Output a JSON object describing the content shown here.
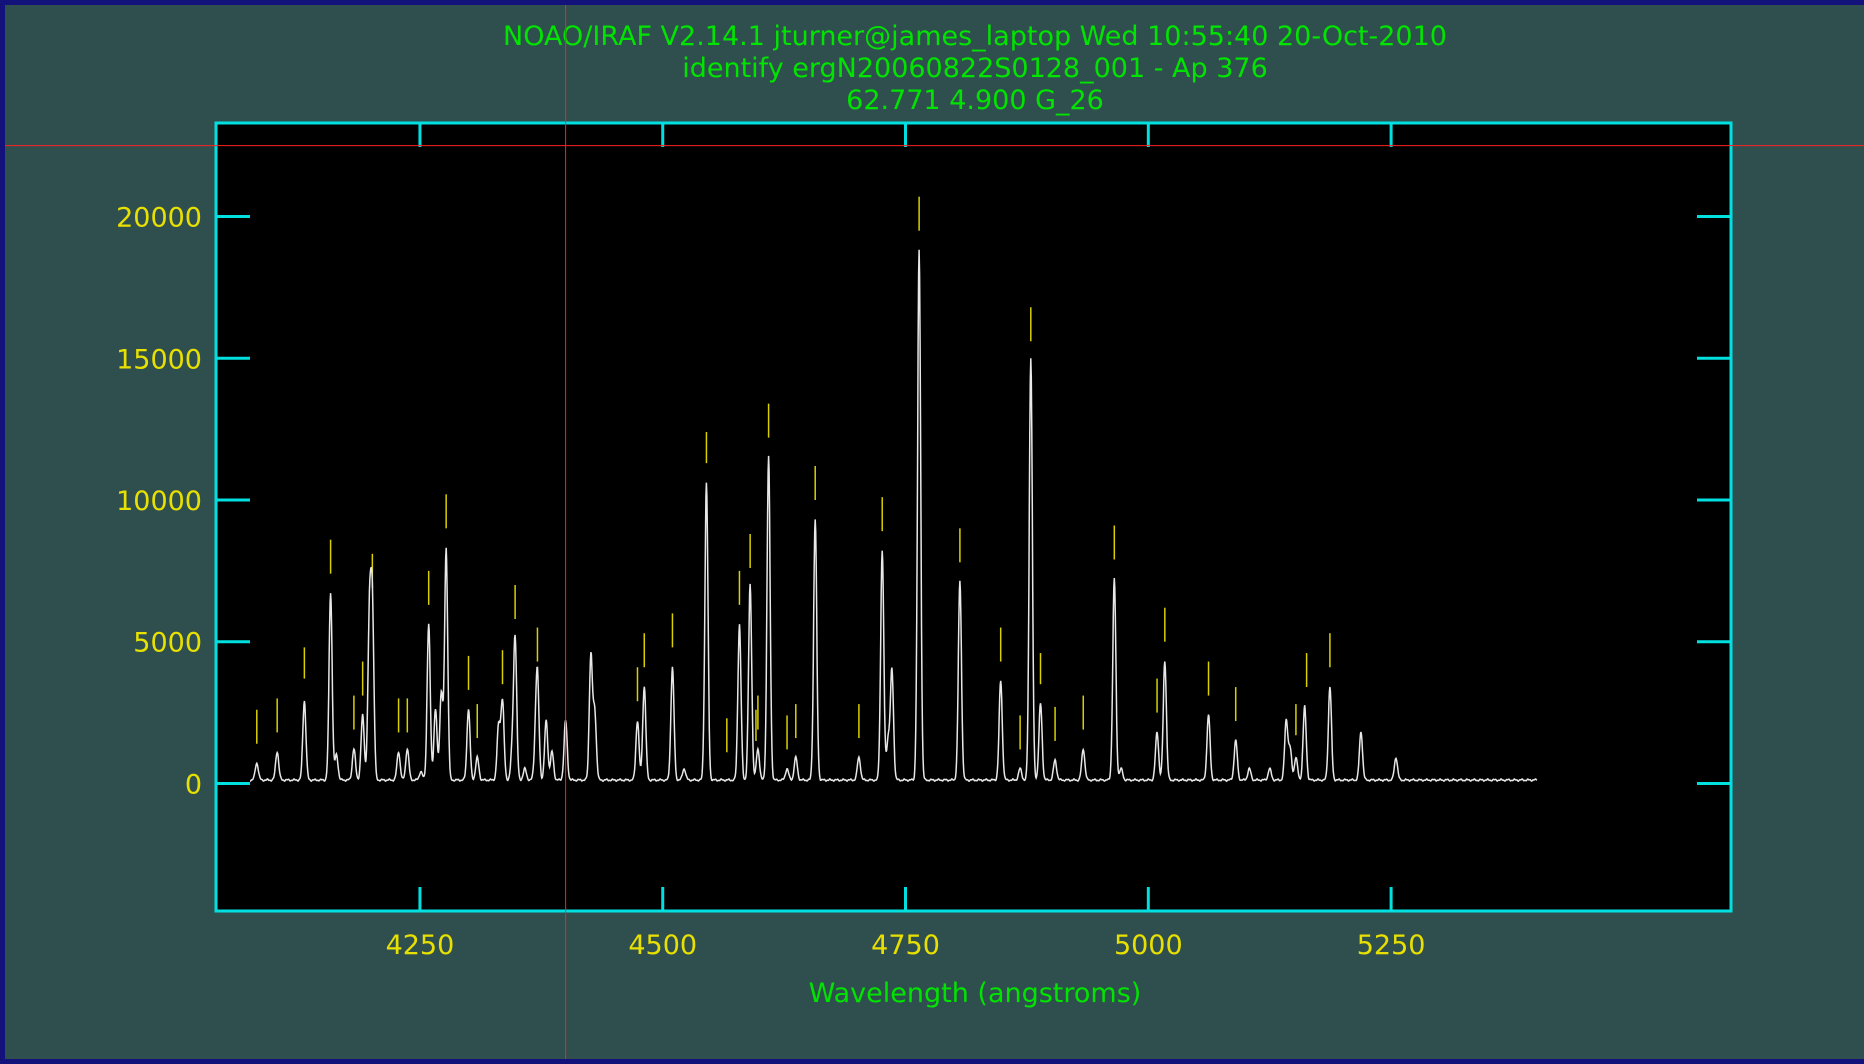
{
  "header": {
    "line1": "NOAO/IRAF V2.14.1 jturner@james_laptop Wed 10:55:40 20-Oct-2010",
    "line2": "identify ergN20060822S0128_001 - Ap 376",
    "line3": "62.771   4.900 G_26"
  },
  "colors": {
    "background": "#2f4f4f",
    "frame": "#00e0e0",
    "spectrum": "#e8e8e8",
    "line_marks": "#d8d000",
    "cursor": "#ff2020",
    "title_text": "#00e400",
    "tick_text": "#e8e000"
  },
  "chart_data": {
    "type": "line",
    "title": "",
    "xlabel": "Wavelength (angstroms)",
    "ylabel": "",
    "xlim": [
      4040,
      5600
    ],
    "ylim": [
      -4500,
      23300
    ],
    "x_ticks": [
      4250,
      4500,
      4750,
      5000,
      5250
    ],
    "y_ticks": [
      0,
      5000,
      10000,
      15000,
      20000
    ],
    "x_range": [
      4075,
      5400
    ],
    "continuum": 120,
    "cursor": {
      "x": 4400,
      "y": 22500
    },
    "emission_lines": [
      {
        "x": 4082,
        "y": 600
      },
      {
        "x": 4103,
        "y": 1000
      },
      {
        "x": 4131,
        "y": 2800
      },
      {
        "x": 4158,
        "y": 6600
      },
      {
        "x": 4164,
        "y": 900
      },
      {
        "x": 4182,
        "y": 1100
      },
      {
        "x": 4191,
        "y": 2300
      },
      {
        "x": 4198,
        "y": 5600
      },
      {
        "x": 4201,
        "y": 6000
      },
      {
        "x": 4228,
        "y": 1000
      },
      {
        "x": 4237,
        "y": 1100
      },
      {
        "x": 4251,
        "y": 300
      },
      {
        "x": 4259,
        "y": 5500
      },
      {
        "x": 4266,
        "y": 2500
      },
      {
        "x": 4272,
        "y": 3100
      },
      {
        "x": 4277,
        "y": 8200
      },
      {
        "x": 4300,
        "y": 2500
      },
      {
        "x": 4309,
        "y": 800
      },
      {
        "x": 4331,
        "y": 1900
      },
      {
        "x": 4335,
        "y": 2800
      },
      {
        "x": 4345,
        "y": 900
      },
      {
        "x": 4348,
        "y": 5000
      },
      {
        "x": 4358,
        "y": 400
      },
      {
        "x": 4369,
        "y": 1000
      },
      {
        "x": 4371,
        "y": 3500
      },
      {
        "x": 4380,
        "y": 2100
      },
      {
        "x": 4386,
        "y": 1000
      },
      {
        "x": 4400,
        "y": 2100
      },
      {
        "x": 4426,
        "y": 4400
      },
      {
        "x": 4430,
        "y": 2400
      },
      {
        "x": 4474,
        "y": 2100
      },
      {
        "x": 4481,
        "y": 3300
      },
      {
        "x": 4510,
        "y": 4000
      },
      {
        "x": 4522,
        "y": 400
      },
      {
        "x": 4545,
        "y": 10500
      },
      {
        "x": 4579,
        "y": 5500
      },
      {
        "x": 4590,
        "y": 6900
      },
      {
        "x": 4598,
        "y": 1100
      },
      {
        "x": 4609,
        "y": 11400
      },
      {
        "x": 4628,
        "y": 400
      },
      {
        "x": 4637,
        "y": 800
      },
      {
        "x": 4657,
        "y": 9200
      },
      {
        "x": 4702,
        "y": 800
      },
      {
        "x": 4726,
        "y": 8100
      },
      {
        "x": 4732,
        "y": 1400
      },
      {
        "x": 4736,
        "y": 3900
      },
      {
        "x": 4764,
        "y": 18700
      },
      {
        "x": 4806,
        "y": 7000
      },
      {
        "x": 4848,
        "y": 3500
      },
      {
        "x": 4868,
        "y": 400
      },
      {
        "x": 4879,
        "y": 14900
      },
      {
        "x": 4889,
        "y": 2700
      },
      {
        "x": 4904,
        "y": 700
      },
      {
        "x": 4933,
        "y": 1100
      },
      {
        "x": 4965,
        "y": 7100
      },
      {
        "x": 4972,
        "y": 400
      },
      {
        "x": 5009,
        "y": 1700
      },
      {
        "x": 5017,
        "y": 4200
      },
      {
        "x": 5062,
        "y": 2300
      },
      {
        "x": 5090,
        "y": 1400
      },
      {
        "x": 5104,
        "y": 400
      },
      {
        "x": 5125,
        "y": 400
      },
      {
        "x": 5142,
        "y": 2100
      },
      {
        "x": 5146,
        "y": 1100
      },
      {
        "x": 5152,
        "y": 800
      },
      {
        "x": 5161,
        "y": 2600
      },
      {
        "x": 5187,
        "y": 3300
      },
      {
        "x": 5219,
        "y": 1700
      },
      {
        "x": 5255,
        "y": 800
      }
    ],
    "line_marks": [
      {
        "x": 4082,
        "top": 2600,
        "bottom": 1400
      },
      {
        "x": 4103,
        "top": 3000,
        "bottom": 1800
      },
      {
        "x": 4131,
        "top": 4800,
        "bottom": 3700
      },
      {
        "x": 4158,
        "top": 8600,
        "bottom": 7400
      },
      {
        "x": 4182,
        "top": 3100,
        "bottom": 1900
      },
      {
        "x": 4191,
        "top": 4300,
        "bottom": 3100
      },
      {
        "x": 4201,
        "top": 8100,
        "bottom": 6900
      },
      {
        "x": 4228,
        "top": 3000,
        "bottom": 1800
      },
      {
        "x": 4237,
        "top": 3000,
        "bottom": 1800
      },
      {
        "x": 4259,
        "top": 7500,
        "bottom": 6300
      },
      {
        "x": 4277,
        "top": 10200,
        "bottom": 9000
      },
      {
        "x": 4300,
        "top": 4500,
        "bottom": 3300
      },
      {
        "x": 4309,
        "top": 2800,
        "bottom": 1600
      },
      {
        "x": 4335,
        "top": 4700,
        "bottom": 3500
      },
      {
        "x": 4348,
        "top": 7000,
        "bottom": 5800
      },
      {
        "x": 4371,
        "top": 5500,
        "bottom": 4300
      },
      {
        "x": 4474,
        "top": 4100,
        "bottom": 2900
      },
      {
        "x": 4481,
        "top": 5300,
        "bottom": 4100
      },
      {
        "x": 4510,
        "top": 6000,
        "bottom": 4800
      },
      {
        "x": 4545,
        "top": 12400,
        "bottom": 11300
      },
      {
        "x": 4566,
        "top": 2300,
        "bottom": 1100
      },
      {
        "x": 4579,
        "top": 7500,
        "bottom": 6300
      },
      {
        "x": 4590,
        "top": 8800,
        "bottom": 7600
      },
      {
        "x": 4596,
        "top": 2600,
        "bottom": 1500
      },
      {
        "x": 4598,
        "top": 3100,
        "bottom": 1900
      },
      {
        "x": 4609,
        "top": 13400,
        "bottom": 12200
      },
      {
        "x": 4628,
        "top": 2400,
        "bottom": 1200
      },
      {
        "x": 4637,
        "top": 2800,
        "bottom": 1600
      },
      {
        "x": 4657,
        "top": 11200,
        "bottom": 10000
      },
      {
        "x": 4702,
        "top": 2800,
        "bottom": 1600
      },
      {
        "x": 4726,
        "top": 10100,
        "bottom": 8900
      },
      {
        "x": 4764,
        "top": 20700,
        "bottom": 19500
      },
      {
        "x": 4806,
        "top": 9000,
        "bottom": 7800
      },
      {
        "x": 4848,
        "top": 5500,
        "bottom": 4300
      },
      {
        "x": 4868,
        "top": 2400,
        "bottom": 1200
      },
      {
        "x": 4879,
        "top": 16800,
        "bottom": 15600
      },
      {
        "x": 4889,
        "top": 4600,
        "bottom": 3500
      },
      {
        "x": 4904,
        "top": 2700,
        "bottom": 1500
      },
      {
        "x": 4933,
        "top": 3100,
        "bottom": 1900
      },
      {
        "x": 4965,
        "top": 9100,
        "bottom": 7900
      },
      {
        "x": 5009,
        "top": 3700,
        "bottom": 2500
      },
      {
        "x": 5017,
        "top": 6200,
        "bottom": 5000
      },
      {
        "x": 5062,
        "top": 4300,
        "bottom": 3100
      },
      {
        "x": 5090,
        "top": 3400,
        "bottom": 2200
      },
      {
        "x": 5152,
        "top": 2800,
        "bottom": 1700
      },
      {
        "x": 5163,
        "top": 4600,
        "bottom": 3400
      },
      {
        "x": 5187,
        "top": 5300,
        "bottom": 4100
      }
    ]
  }
}
